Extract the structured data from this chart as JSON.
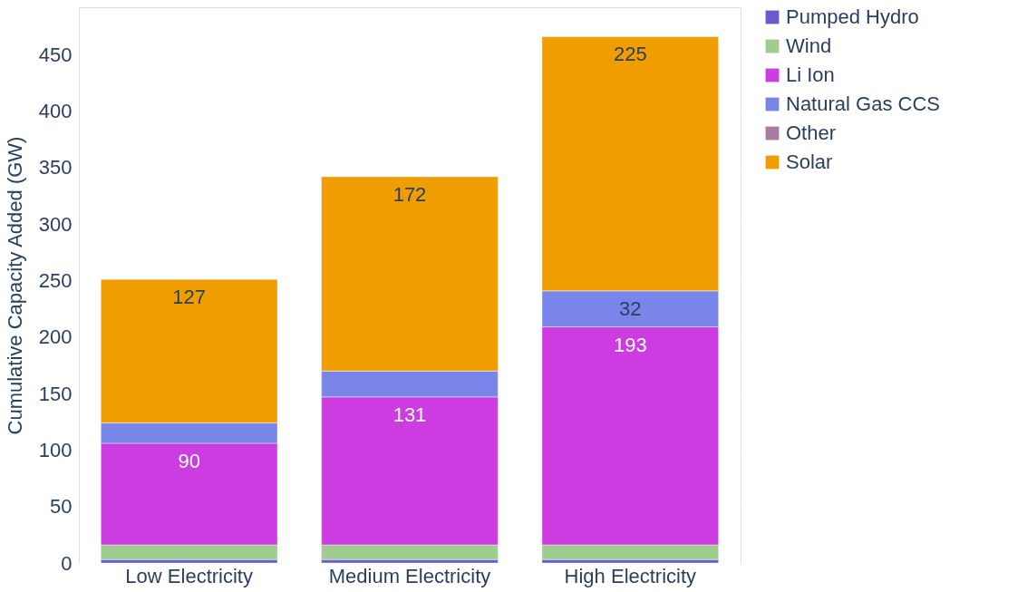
{
  "chart_data": {
    "type": "bar",
    "stacked": true,
    "ylabel": "Cumulative Capacity Added (GW)",
    "categories": [
      "Low Electricity",
      "Medium Electricity",
      "High Electricity"
    ],
    "series": [
      {
        "name": "Pumped Hydro",
        "color": "#6a5acd",
        "values": [
          3,
          3,
          3
        ],
        "value_labels": [
          null,
          null,
          null
        ]
      },
      {
        "name": "Wind",
        "color": "#a0cc8f",
        "values": [
          13,
          13,
          13
        ],
        "value_labels": [
          null,
          null,
          null
        ]
      },
      {
        "name": "Li Ion",
        "color": "#cc3ce0",
        "values": [
          90,
          131,
          193
        ],
        "value_labels": [
          "90",
          "131",
          "193"
        ]
      },
      {
        "name": "Natural Gas CCS",
        "color": "#7a85ea",
        "values": [
          18,
          23,
          32
        ],
        "value_labels": [
          null,
          null,
          "32"
        ]
      },
      {
        "name": "Other",
        "color": "#a97ba0",
        "values": [
          0,
          0,
          0
        ],
        "value_labels": [
          null,
          null,
          null
        ]
      },
      {
        "name": "Solar",
        "color": "#f09d00",
        "values": [
          127,
          172,
          225
        ],
        "value_labels": [
          "127",
          "172",
          "225"
        ]
      }
    ],
    "ylim": [
      0,
      492
    ],
    "yticks": [
      0,
      50,
      100,
      150,
      200,
      250,
      300,
      350,
      400,
      450
    ],
    "grid": "y",
    "legend": "top right"
  }
}
